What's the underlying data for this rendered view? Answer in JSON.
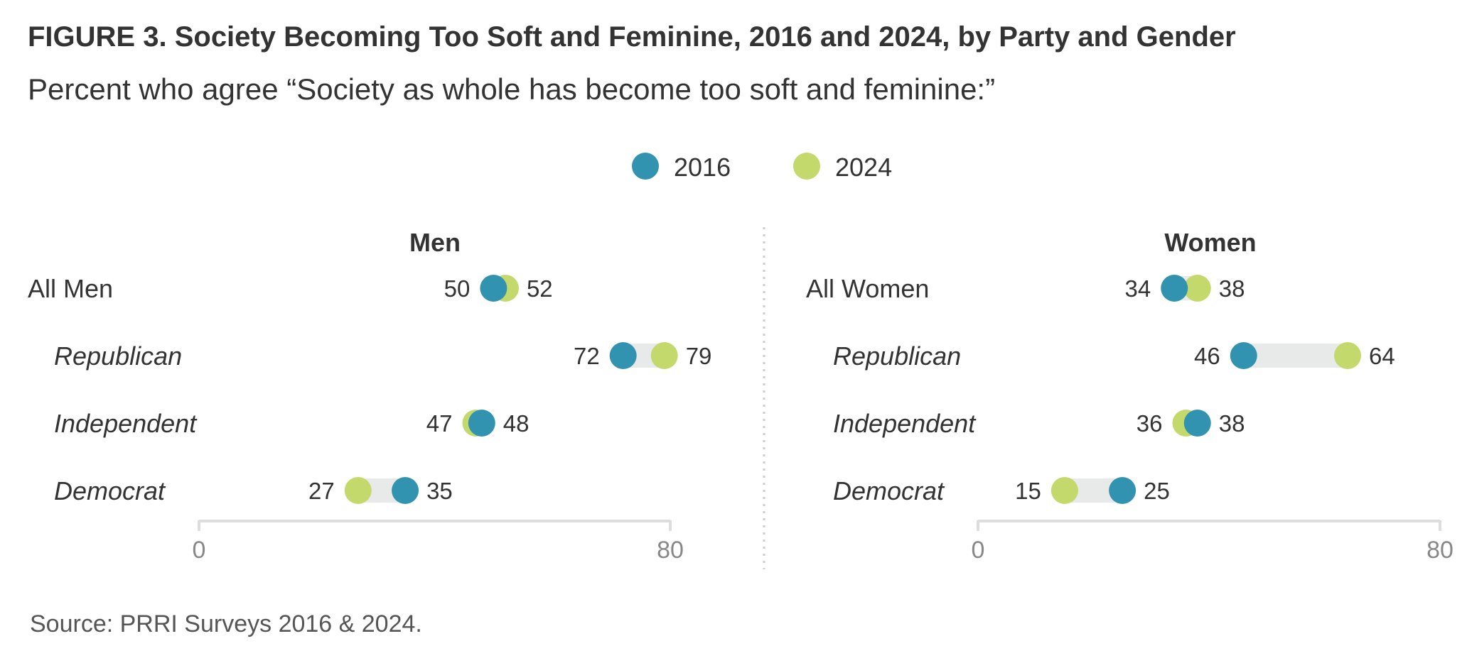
{
  "title": "FIGURE 3.  Society Becoming Too Soft and Feminine, 2016 and 2024, by Party and Gender",
  "subtitle": "Percent who agree “Society as whole has become too soft and feminine:”",
  "source": "Source: PRRI Surveys 2016 & 2024.",
  "colors": {
    "y2016": "#3293b0",
    "y2024": "#c4d96b",
    "connector": "#e8e9e9",
    "axis": "#dddddd",
    "divider": "#cccccc"
  },
  "chart_data": {
    "type": "dumbbell",
    "legend": {
      "placement": "top-center",
      "entries": [
        "2016",
        "2024"
      ]
    },
    "xlim": [
      0,
      80
    ],
    "ticks": [
      "0",
      "80"
    ],
    "panels": [
      {
        "title": "Men",
        "rows": [
          {
            "label": "All Men",
            "italic": false,
            "v2016": 50,
            "v2024": 52
          },
          {
            "label": "Republican",
            "italic": true,
            "v2016": 72,
            "v2024": 79
          },
          {
            "label": "Independent",
            "italic": true,
            "v2016": 48,
            "v2024": 47
          },
          {
            "label": "Democrat",
            "italic": true,
            "v2016": 35,
            "v2024": 27
          }
        ]
      },
      {
        "title": "Women",
        "rows": [
          {
            "label": "All Women",
            "italic": false,
            "v2016": 34,
            "v2024": 38
          },
          {
            "label": "Republican",
            "italic": true,
            "v2016": 46,
            "v2024": 64
          },
          {
            "label": "Independent",
            "italic": true,
            "v2016": 38,
            "v2024": 36
          },
          {
            "label": "Democrat",
            "italic": true,
            "v2016": 25,
            "v2024": 15
          }
        ]
      }
    ]
  }
}
